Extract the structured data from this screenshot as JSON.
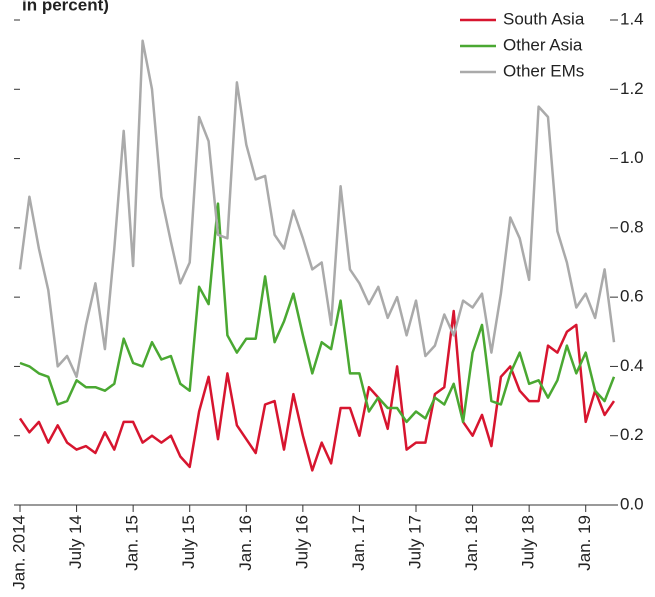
{
  "chart_data": {
    "type": "line",
    "subtitle": "in percent)",
    "categories": [
      "Jan. 2014",
      null,
      null,
      null,
      null,
      null,
      "July 14",
      null,
      null,
      null,
      null,
      null,
      "Jan. 15",
      null,
      null,
      null,
      null,
      null,
      "July 15",
      null,
      null,
      null,
      null,
      null,
      "Jan. 16",
      null,
      null,
      null,
      null,
      null,
      "July 16",
      null,
      null,
      null,
      null,
      null,
      "Jan. 17",
      null,
      null,
      null,
      null,
      null,
      "July 17",
      null,
      null,
      null,
      null,
      null,
      "Jan. 18",
      null,
      null,
      null,
      null,
      null,
      "July 18",
      null,
      null,
      null,
      null,
      null,
      "Jan. 19",
      null,
      null,
      null
    ],
    "series": [
      {
        "name": "South Asia",
        "color": "#d7152f",
        "values": [
          0.25,
          0.21,
          0.24,
          0.18,
          0.23,
          0.18,
          0.16,
          0.17,
          0.15,
          0.21,
          0.16,
          0.24,
          0.24,
          0.18,
          0.2,
          0.18,
          0.2,
          0.14,
          0.11,
          0.27,
          0.37,
          0.19,
          0.38,
          0.23,
          0.19,
          0.15,
          0.29,
          0.3,
          0.16,
          0.32,
          0.2,
          0.1,
          0.18,
          0.12,
          0.28,
          0.28,
          0.2,
          0.34,
          0.31,
          0.22,
          0.4,
          0.16,
          0.18,
          0.18,
          0.32,
          0.34,
          0.56,
          0.24,
          0.2,
          0.26,
          0.17,
          0.37,
          0.4,
          0.33,
          0.3,
          0.3,
          0.46,
          0.44,
          0.5,
          0.52,
          0.24,
          0.33,
          0.26,
          0.3
        ]
      },
      {
        "name": "Other Asia",
        "color": "#4aa832",
        "values": [
          0.41,
          0.4,
          0.38,
          0.37,
          0.29,
          0.3,
          0.36,
          0.34,
          0.34,
          0.33,
          0.35,
          0.48,
          0.41,
          0.4,
          0.47,
          0.42,
          0.43,
          0.35,
          0.33,
          0.63,
          0.58,
          0.87,
          0.49,
          0.44,
          0.48,
          0.48,
          0.66,
          0.47,
          0.53,
          0.61,
          0.49,
          0.38,
          0.47,
          0.45,
          0.59,
          0.38,
          0.38,
          0.27,
          0.31,
          0.28,
          0.28,
          0.24,
          0.27,
          0.25,
          0.31,
          0.29,
          0.35,
          0.24,
          0.44,
          0.52,
          0.3,
          0.29,
          0.38,
          0.44,
          0.35,
          0.36,
          0.31,
          0.36,
          0.46,
          0.38,
          0.44,
          0.33,
          0.3,
          0.37
        ]
      },
      {
        "name": "Other EMs",
        "color": "#aaaaaa",
        "values": [
          0.68,
          0.89,
          0.74,
          0.62,
          0.4,
          0.43,
          0.37,
          0.52,
          0.64,
          0.45,
          0.74,
          1.08,
          0.69,
          1.34,
          1.2,
          0.89,
          0.76,
          0.64,
          0.7,
          1.12,
          1.05,
          0.78,
          0.77,
          1.22,
          1.04,
          0.94,
          0.95,
          0.78,
          0.74,
          0.85,
          0.77,
          0.68,
          0.7,
          0.52,
          0.92,
          0.68,
          0.64,
          0.58,
          0.63,
          0.54,
          0.6,
          0.49,
          0.59,
          0.43,
          0.46,
          0.55,
          0.49,
          0.59,
          0.57,
          0.61,
          0.44,
          0.61,
          0.83,
          0.77,
          0.65,
          1.15,
          1.12,
          0.79,
          0.7,
          0.57,
          0.61,
          0.54,
          0.68,
          0.47
        ]
      }
    ],
    "ylim": [
      0,
      1.4
    ],
    "yticks": [
      {
        "value": 0,
        "label": "0.0"
      },
      0.2,
      0.4,
      0.6,
      0.8,
      {
        "value": 1,
        "label": "1.0"
      },
      1.2,
      1.4
    ],
    "legend": "top-right"
  }
}
